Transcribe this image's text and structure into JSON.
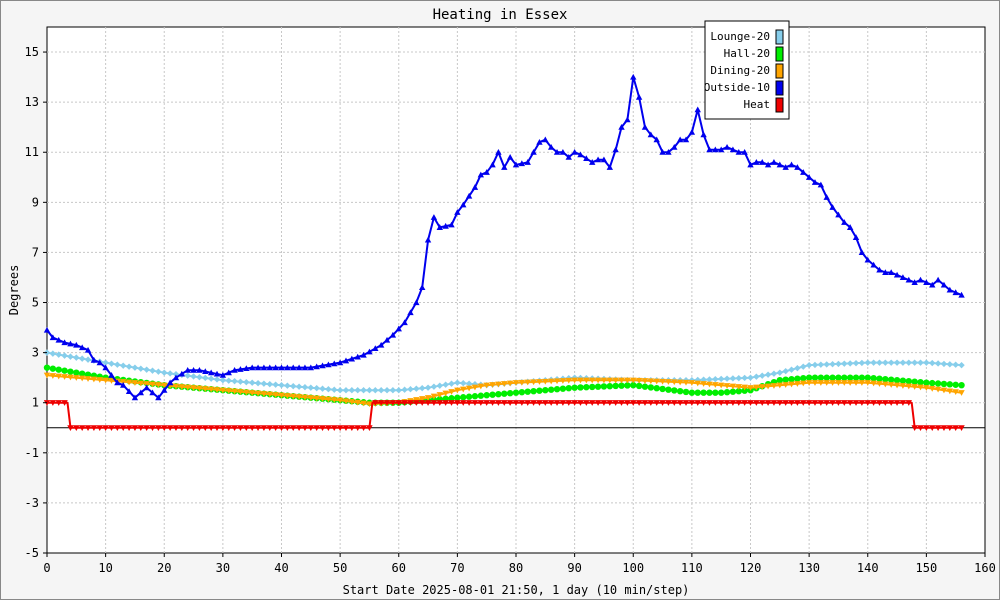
{
  "chart_data": {
    "type": "line",
    "title": "Heating in Essex",
    "xlabel": "Start Date 2025-08-01 21:50, 1 day (10 min/step)",
    "ylabel": "Degrees",
    "xlim": [
      0,
      160
    ],
    "ylim": [
      -5,
      16
    ],
    "xticks": [
      0,
      10,
      20,
      30,
      40,
      50,
      60,
      70,
      80,
      90,
      100,
      110,
      120,
      130,
      140,
      150,
      160
    ],
    "yticks": [
      -5,
      -3,
      -1,
      1,
      3,
      5,
      7,
      9,
      11,
      13,
      15
    ],
    "grid": true,
    "legend_position": "top-right",
    "series": [
      {
        "name": "Lounge-20",
        "color": "#87ceeb",
        "marker": "diamond",
        "points": [
          [
            0,
            3.0
          ],
          [
            10,
            2.6
          ],
          [
            20,
            2.2
          ],
          [
            30,
            1.9
          ],
          [
            40,
            1.7
          ],
          [
            50,
            1.5
          ],
          [
            60,
            1.5
          ],
          [
            65,
            1.6
          ],
          [
            70,
            1.8
          ],
          [
            75,
            1.7
          ],
          [
            80,
            1.8
          ],
          [
            85,
            1.9
          ],
          [
            90,
            2.0
          ],
          [
            100,
            1.9
          ],
          [
            110,
            1.9
          ],
          [
            120,
            2.0
          ],
          [
            125,
            2.2
          ],
          [
            130,
            2.5
          ],
          [
            140,
            2.6
          ],
          [
            150,
            2.6
          ],
          [
            156,
            2.5
          ]
        ]
      },
      {
        "name": "Hall-20",
        "color": "#00ee00",
        "marker": "circle",
        "points": [
          [
            0,
            2.4
          ],
          [
            10,
            2.0
          ],
          [
            20,
            1.7
          ],
          [
            30,
            1.5
          ],
          [
            40,
            1.3
          ],
          [
            50,
            1.1
          ],
          [
            55,
            1.0
          ],
          [
            60,
            1.0
          ],
          [
            70,
            1.2
          ],
          [
            80,
            1.4
          ],
          [
            90,
            1.6
          ],
          [
            100,
            1.7
          ],
          [
            110,
            1.4
          ],
          [
            115,
            1.4
          ],
          [
            120,
            1.5
          ],
          [
            125,
            1.9
          ],
          [
            130,
            2.0
          ],
          [
            140,
            2.0
          ],
          [
            150,
            1.8
          ],
          [
            156,
            1.7
          ]
        ]
      },
      {
        "name": "Dining-20",
        "color": "#ffa500",
        "marker": "triangle-down",
        "points": [
          [
            0,
            2.1
          ],
          [
            10,
            1.9
          ],
          [
            20,
            1.7
          ],
          [
            30,
            1.5
          ],
          [
            40,
            1.3
          ],
          [
            50,
            1.1
          ],
          [
            55,
            0.95
          ],
          [
            60,
            1.0
          ],
          [
            65,
            1.2
          ],
          [
            70,
            1.5
          ],
          [
            75,
            1.7
          ],
          [
            80,
            1.8
          ],
          [
            90,
            1.9
          ],
          [
            100,
            1.9
          ],
          [
            110,
            1.8
          ],
          [
            120,
            1.6
          ],
          [
            125,
            1.7
          ],
          [
            130,
            1.8
          ],
          [
            140,
            1.8
          ],
          [
            150,
            1.6
          ],
          [
            156,
            1.4
          ]
        ]
      },
      {
        "name": "Outside-10",
        "color": "#0000ee",
        "marker": "triangle-up",
        "points": [
          [
            0,
            3.9
          ],
          [
            1,
            3.6
          ],
          [
            3,
            3.4
          ],
          [
            5,
            3.3
          ],
          [
            6,
            3.2
          ],
          [
            7,
            3.1
          ],
          [
            8,
            2.7
          ],
          [
            9,
            2.6
          ],
          [
            10,
            2.4
          ],
          [
            12,
            1.8
          ],
          [
            13,
            1.7
          ],
          [
            15,
            1.2
          ],
          [
            16,
            1.4
          ],
          [
            17,
            1.6
          ],
          [
            19,
            1.2
          ],
          [
            20,
            1.5
          ],
          [
            21,
            1.8
          ],
          [
            22,
            2.0
          ],
          [
            24,
            2.3
          ],
          [
            26,
            2.3
          ],
          [
            28,
            2.2
          ],
          [
            30,
            2.1
          ],
          [
            32,
            2.3
          ],
          [
            35,
            2.4
          ],
          [
            40,
            2.4
          ],
          [
            45,
            2.4
          ],
          [
            50,
            2.6
          ],
          [
            54,
            2.9
          ],
          [
            57,
            3.3
          ],
          [
            59,
            3.7
          ],
          [
            61,
            4.2
          ],
          [
            63,
            5.0
          ],
          [
            64,
            5.6
          ],
          [
            65,
            7.5
          ],
          [
            66,
            8.4
          ],
          [
            67,
            8.0
          ],
          [
            69,
            8.1
          ],
          [
            70,
            8.6
          ],
          [
            71,
            8.9
          ],
          [
            73,
            9.6
          ],
          [
            74,
            10.1
          ],
          [
            75,
            10.2
          ],
          [
            76,
            10.5
          ],
          [
            77,
            11.0
          ],
          [
            78,
            10.4
          ],
          [
            79,
            10.8
          ],
          [
            80,
            10.5
          ],
          [
            82,
            10.6
          ],
          [
            83,
            11.0
          ],
          [
            84,
            11.4
          ],
          [
            85,
            11.5
          ],
          [
            86,
            11.2
          ],
          [
            87,
            11.0
          ],
          [
            88,
            11.0
          ],
          [
            89,
            10.8
          ],
          [
            90,
            11.0
          ],
          [
            91,
            10.9
          ],
          [
            93,
            10.6
          ],
          [
            94,
            10.7
          ],
          [
            95,
            10.7
          ],
          [
            96,
            10.4
          ],
          [
            97,
            11.1
          ],
          [
            98,
            12.0
          ],
          [
            99,
            12.3
          ],
          [
            100,
            14.0
          ],
          [
            101,
            13.2
          ],
          [
            102,
            12.0
          ],
          [
            103,
            11.7
          ],
          [
            104,
            11.5
          ],
          [
            105,
            11.0
          ],
          [
            106,
            11.0
          ],
          [
            107,
            11.2
          ],
          [
            108,
            11.5
          ],
          [
            109,
            11.5
          ],
          [
            110,
            11.8
          ],
          [
            111,
            12.7
          ],
          [
            112,
            11.7
          ],
          [
            113,
            11.1
          ],
          [
            114,
            11.1
          ],
          [
            115,
            11.1
          ],
          [
            116,
            11.2
          ],
          [
            117,
            11.1
          ],
          [
            118,
            11.0
          ],
          [
            119,
            11.0
          ],
          [
            120,
            10.5
          ],
          [
            121,
            10.6
          ],
          [
            122,
            10.6
          ],
          [
            123,
            10.5
          ],
          [
            124,
            10.6
          ],
          [
            125,
            10.5
          ],
          [
            126,
            10.4
          ],
          [
            127,
            10.5
          ],
          [
            128,
            10.4
          ],
          [
            129,
            10.2
          ],
          [
            130,
            10.0
          ],
          [
            131,
            9.8
          ],
          [
            132,
            9.7
          ],
          [
            133,
            9.2
          ],
          [
            134,
            8.8
          ],
          [
            135,
            8.5
          ],
          [
            136,
            8.2
          ],
          [
            137,
            8.0
          ],
          [
            138,
            7.6
          ],
          [
            139,
            7.0
          ],
          [
            140,
            6.7
          ],
          [
            141,
            6.5
          ],
          [
            142,
            6.3
          ],
          [
            143,
            6.2
          ],
          [
            144,
            6.2
          ],
          [
            145,
            6.1
          ],
          [
            146,
            6.0
          ],
          [
            147,
            5.9
          ],
          [
            148,
            5.8
          ],
          [
            149,
            5.9
          ],
          [
            150,
            5.8
          ],
          [
            151,
            5.7
          ],
          [
            152,
            5.9
          ],
          [
            153,
            5.7
          ],
          [
            154,
            5.5
          ],
          [
            155,
            5.4
          ],
          [
            156,
            5.3
          ]
        ]
      },
      {
        "name": "Heat",
        "color": "#ee0000",
        "marker": "triangle-down",
        "step": true,
        "points": [
          [
            0,
            1
          ],
          [
            3.5,
            1
          ],
          [
            4,
            0
          ],
          [
            55,
            0
          ],
          [
            55.5,
            1
          ],
          [
            147.5,
            1
          ],
          [
            148,
            0
          ],
          [
            156,
            0
          ]
        ]
      }
    ]
  }
}
